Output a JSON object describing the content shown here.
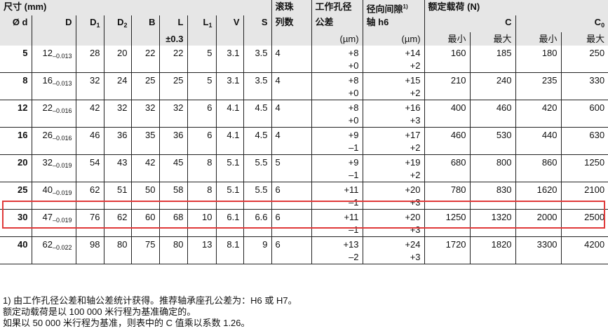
{
  "header": {
    "dims": "尺寸 (mm)",
    "d": "Ø d",
    "D": "D",
    "D1": "D",
    "D1_sub": "1",
    "D2": "D",
    "D2_sub": "2",
    "B": "B",
    "L": "L",
    "L_tol": "±0.3",
    "L1": "L",
    "L1_sub": "1",
    "V": "V",
    "S": "S",
    "rows_a": "滚珠",
    "rows_b": "列数",
    "bore_a": "工作孔径",
    "bore_b": "公差",
    "bore_unit": "(µm)",
    "clear_a": "径向间隙",
    "clear_sup": "1)",
    "clear_b": "轴 h6",
    "clear_unit": "(µm)",
    "load": "额定载荷 (N)",
    "C": "C",
    "C0": "C",
    "C0_sub": "0",
    "min": "最小",
    "max": "最大"
  },
  "rows": [
    {
      "d": "5",
      "D": "12",
      "Dtol": "–0.013",
      "D1": "28",
      "D2": "20",
      "B": "22",
      "L": "22",
      "L1": "5",
      "V": "3.1",
      "S": "3.5",
      "n": "4",
      "bore_hi": "+8",
      "bore_lo": "+0",
      "cl_hi": "+14",
      "cl_lo": "+2",
      "Cmin": "160",
      "Cmax": "185",
      "C0min": "180",
      "C0max": "250"
    },
    {
      "d": "8",
      "D": "16",
      "Dtol": "–0.013",
      "D1": "32",
      "D2": "24",
      "B": "25",
      "L": "25",
      "L1": "5",
      "V": "3.1",
      "S": "3.5",
      "n": "4",
      "bore_hi": "+8",
      "bore_lo": "+0",
      "cl_hi": "+15",
      "cl_lo": "+2",
      "Cmin": "210",
      "Cmax": "240",
      "C0min": "235",
      "C0max": "330"
    },
    {
      "d": "12",
      "D": "22",
      "Dtol": "–0.016",
      "D1": "42",
      "D2": "32",
      "B": "32",
      "L": "32",
      "L1": "6",
      "V": "4.1",
      "S": "4.5",
      "n": "4",
      "bore_hi": "+8",
      "bore_lo": "+0",
      "cl_hi": "+16",
      "cl_lo": "+3",
      "Cmin": "400",
      "Cmax": "460",
      "C0min": "420",
      "C0max": "600"
    },
    {
      "d": "16",
      "D": "26",
      "Dtol": "–0.016",
      "D1": "46",
      "D2": "36",
      "B": "35",
      "L": "36",
      "L1": "6",
      "V": "4.1",
      "S": "4.5",
      "n": "4",
      "bore_hi": "+9",
      "bore_lo": "–1",
      "cl_hi": "+17",
      "cl_lo": "+2",
      "Cmin": "460",
      "Cmax": "530",
      "C0min": "440",
      "C0max": "630"
    },
    {
      "d": "20",
      "D": "32",
      "Dtol": "–0.019",
      "D1": "54",
      "D2": "43",
      "B": "42",
      "L": "45",
      "L1": "8",
      "V": "5.1",
      "S": "5.5",
      "n": "5",
      "bore_hi": "+9",
      "bore_lo": "–1",
      "cl_hi": "+19",
      "cl_lo": "+2",
      "Cmin": "680",
      "Cmax": "800",
      "C0min": "860",
      "C0max": "1250"
    },
    {
      "d": "25",
      "D": "40",
      "Dtol": "–0.019",
      "D1": "62",
      "D2": "51",
      "B": "50",
      "L": "58",
      "L1": "8",
      "V": "5.1",
      "S": "5.5",
      "n": "6",
      "bore_hi": "+11",
      "bore_lo": "–1",
      "cl_hi": "+20",
      "cl_lo": "+3",
      "Cmin": "780",
      "Cmax": "830",
      "C0min": "1620",
      "C0max": "2100"
    },
    {
      "d": "30",
      "D": "47",
      "Dtol": "–0.019",
      "D1": "76",
      "D2": "62",
      "B": "60",
      "L": "68",
      "L1": "10",
      "V": "6.1",
      "S": "6.6",
      "n": "6",
      "bore_hi": "+11",
      "bore_lo": "–1",
      "cl_hi": "+20",
      "cl_lo": "+3",
      "Cmin": "1250",
      "Cmax": "1320",
      "C0min": "2000",
      "C0max": "2500"
    },
    {
      "d": "40",
      "D": "62",
      "Dtol": "–0.022",
      "D1": "98",
      "D2": "80",
      "B": "75",
      "L": "80",
      "L1": "13",
      "V": "8.1",
      "S": "9",
      "n": "6",
      "bore_hi": "+13",
      "bore_lo": "–2",
      "cl_hi": "+24",
      "cl_lo": "+3",
      "Cmin": "1720",
      "Cmax": "1820",
      "C0min": "3300",
      "C0max": "4200"
    }
  ],
  "highlight_color": "#e03a3a",
  "notes": {
    "footnote": "1)   由工作孔径公差和轴公差统计获得。推荐轴承座孔公差为：H6 或 H7。",
    "line1": "额定动载荷是以 100 000 米行程为基准确定的。",
    "line2": "如果以 50 000 米行程为基准，则表中的 C 值乘以系数 1.26。"
  }
}
